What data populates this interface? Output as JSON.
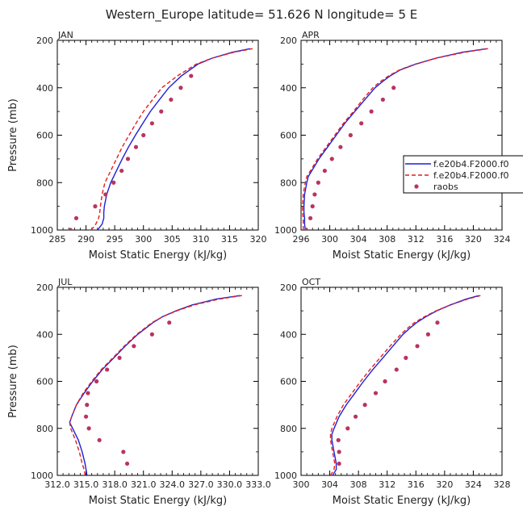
{
  "figure": {
    "title": "Western_Europe   latitude= 51.626 N longitude= 5 E"
  },
  "legend": {
    "placement": "right of APR panel",
    "entries": [
      {
        "label": "f.e20b4.F2000.f0",
        "style": "solid",
        "color": "#1f1fd6"
      },
      {
        "label": "f.e20b4.F2000.f0",
        "style": "dashed",
        "color": "#e0201e"
      },
      {
        "label": "raobs",
        "style": "dots",
        "color": "#b8345e"
      }
    ]
  },
  "colors": {
    "series1": "#1f1fd6",
    "series2": "#e0201e",
    "raobs": "#b8345e"
  },
  "chart_data": [
    {
      "type": "line",
      "panel": "JAN",
      "xlabel": "Moist Static Energy (kJ/kg)",
      "ylabel": "Pressure (mb)",
      "xlim": [
        285,
        320
      ],
      "ylim": [
        200,
        1000
      ],
      "y_inverted": true,
      "x_ticks": [
        285,
        290,
        295,
        300,
        305,
        310,
        315,
        320
      ],
      "x_tick_labels": [
        "285",
        "290",
        "295",
        "300",
        "305",
        "310",
        "315",
        "320"
      ],
      "y_ticks": [
        200,
        400,
        600,
        800,
        1000
      ],
      "y_tick_labels": [
        "200",
        "400",
        "600",
        "800",
        "1000"
      ],
      "series": [
        {
          "pressure": [
            1000,
            975,
            950,
            925,
            900,
            850,
            800,
            750,
            700,
            650,
            600,
            550,
            500,
            450,
            400,
            350,
            300,
            275,
            250,
            235
          ],
          "values": [
            292.0,
            292.8,
            293.1,
            293.1,
            293.2,
            293.6,
            294.3,
            295.3,
            296.3,
            297.4,
            298.6,
            299.9,
            301.2,
            302.8,
            304.4,
            306.6,
            309.5,
            312.0,
            315.5,
            318.6
          ]
        },
        {
          "pressure": [
            1000,
            975,
            950,
            925,
            900,
            850,
            800,
            750,
            700,
            650,
            600,
            550,
            500,
            450,
            400,
            350,
            300,
            275,
            250,
            235
          ],
          "values": [
            290.9,
            291.7,
            292.2,
            292.4,
            292.5,
            292.8,
            293.3,
            294.3,
            295.3,
            296.3,
            297.5,
            298.7,
            300.0,
            301.6,
            303.2,
            305.9,
            309.2,
            312.0,
            315.8,
            319.0
          ]
        },
        {
          "pressure": [
            1000,
            950,
            900,
            850,
            800,
            750,
            700,
            650,
            600,
            550,
            500,
            450,
            400,
            350
          ],
          "values": [
            287.3,
            288.3,
            291.6,
            293.4,
            294.8,
            296.2,
            297.3,
            298.7,
            300.0,
            301.5,
            303.1,
            304.8,
            306.5,
            308.3
          ]
        }
      ]
    },
    {
      "type": "line",
      "panel": "APR",
      "xlabel": "Moist Static Energy (kJ/kg)",
      "ylabel": "",
      "xlim": [
        296,
        324
      ],
      "ylim": [
        200,
        1000
      ],
      "y_inverted": true,
      "x_ticks": [
        296,
        300,
        304,
        308,
        312,
        316,
        320,
        324
      ],
      "x_tick_labels": [
        "296",
        "300",
        "304",
        "308",
        "312",
        "316",
        "320",
        "324"
      ],
      "y_ticks": [
        200,
        400,
        600,
        800,
        1000
      ],
      "y_tick_labels": [
        "200",
        "400",
        "600",
        "800",
        "1000"
      ],
      "series": [
        {
          "pressure": [
            1000,
            975,
            950,
            925,
            900,
            850,
            800,
            775,
            750,
            700,
            650,
            600,
            550,
            500,
            450,
            400,
            375,
            350,
            325,
            300,
            275,
            250,
            235
          ],
          "values": [
            296.6,
            296.5,
            296.5,
            296.4,
            296.4,
            296.5,
            296.8,
            297.0,
            297.5,
            298.5,
            299.7,
            300.9,
            302.1,
            303.5,
            304.9,
            306.3,
            307.3,
            308.4,
            309.8,
            312.0,
            314.8,
            318.5,
            321.9
          ]
        },
        {
          "pressure": [
            1000,
            975,
            950,
            925,
            900,
            850,
            800,
            775,
            750,
            700,
            650,
            600,
            550,
            500,
            450,
            400,
            375,
            350,
            325,
            300,
            275,
            250,
            235
          ],
          "values": [
            296.3,
            296.3,
            296.3,
            296.2,
            296.2,
            296.3,
            296.6,
            296.8,
            297.3,
            298.3,
            299.5,
            300.7,
            301.9,
            303.3,
            304.6,
            306.0,
            307.0,
            308.2,
            309.7,
            311.9,
            314.9,
            318.8,
            322.1
          ]
        },
        {
          "pressure": [
            1000,
            950,
            900,
            850,
            800,
            750,
            700,
            650,
            600,
            550,
            500,
            450,
            400
          ],
          "values": [
            296.7,
            297.3,
            297.6,
            297.9,
            298.4,
            299.3,
            300.3,
            301.5,
            302.9,
            304.4,
            305.8,
            307.4,
            308.9
          ]
        }
      ]
    },
    {
      "type": "line",
      "panel": "JUL",
      "xlabel": "Moist Static Energy (kJ/kg)",
      "ylabel": "Pressure (mb)",
      "xlim": [
        312,
        333
      ],
      "ylim": [
        200,
        1000
      ],
      "y_inverted": true,
      "x_ticks": [
        312,
        315,
        318,
        321,
        324,
        327,
        330,
        333
      ],
      "x_tick_labels": [
        "312.0",
        "315.0",
        "318.0",
        "321.0",
        "324.0",
        "327.0",
        "330.0",
        "333.0"
      ],
      "y_ticks": [
        200,
        400,
        600,
        800,
        1000
      ],
      "y_tick_labels": [
        "200",
        "400",
        "600",
        "800",
        "1000"
      ],
      "series": [
        {
          "pressure": [
            1000,
            975,
            950,
            900,
            850,
            800,
            775,
            750,
            700,
            650,
            600,
            550,
            500,
            450,
            400,
            350,
            325,
            300,
            275,
            250,
            235
          ],
          "values": [
            315.1,
            315.0,
            314.9,
            314.6,
            314.2,
            313.6,
            313.3,
            313.5,
            314.0,
            314.8,
            315.7,
            316.7,
            317.9,
            319.1,
            320.4,
            322.0,
            323.0,
            324.4,
            326.1,
            328.6,
            331.1
          ]
        },
        {
          "pressure": [
            1000,
            975,
            950,
            900,
            850,
            800,
            775,
            750,
            700,
            650,
            600,
            550,
            500,
            450,
            400,
            350,
            325,
            300,
            275,
            250,
            235
          ],
          "values": [
            314.9,
            314.8,
            314.6,
            314.3,
            313.9,
            313.4,
            313.3,
            313.5,
            314.0,
            314.7,
            315.6,
            316.6,
            317.8,
            319.0,
            320.3,
            321.9,
            323.0,
            324.5,
            326.3,
            328.9,
            331.3
          ]
        },
        {
          "pressure": [
            950,
            900,
            850,
            800,
            750,
            700,
            650,
            600,
            550,
            500,
            450,
            400,
            350
          ],
          "values": [
            319.3,
            318.9,
            316.4,
            315.3,
            315.0,
            315.1,
            315.2,
            316.1,
            317.2,
            318.5,
            320.0,
            321.9,
            323.7
          ]
        }
      ]
    },
    {
      "type": "line",
      "panel": "OCT",
      "xlabel": "Moist Static Energy (kJ/kg)",
      "ylabel": "",
      "xlim": [
        300,
        328
      ],
      "ylim": [
        200,
        1000
      ],
      "y_inverted": true,
      "x_ticks": [
        300,
        304,
        308,
        312,
        316,
        320,
        324,
        328
      ],
      "x_tick_labels": [
        "300",
        "304",
        "308",
        "312",
        "316",
        "320",
        "324",
        "328"
      ],
      "y_ticks": [
        200,
        400,
        600,
        800,
        1000
      ],
      "y_tick_labels": [
        "200",
        "400",
        "600",
        "800",
        "1000"
      ],
      "series": [
        {
          "pressure": [
            1000,
            975,
            950,
            900,
            850,
            825,
            800,
            750,
            700,
            650,
            600,
            550,
            500,
            450,
            400,
            375,
            350,
            325,
            300,
            275,
            250,
            235
          ],
          "values": [
            304.4,
            304.9,
            304.9,
            304.6,
            304.3,
            304.3,
            304.6,
            305.3,
            306.3,
            307.5,
            308.7,
            310.0,
            311.4,
            312.8,
            314.2,
            315.1,
            316.1,
            317.4,
            318.9,
            320.8,
            323.0,
            324.8
          ]
        },
        {
          "pressure": [
            1000,
            975,
            950,
            900,
            850,
            825,
            800,
            750,
            700,
            650,
            600,
            550,
            500,
            450,
            400,
            375,
            350,
            325,
            300,
            275,
            250,
            235
          ],
          "values": [
            304.1,
            304.6,
            304.7,
            304.4,
            304.1,
            304.1,
            304.3,
            305.0,
            305.9,
            307.1,
            308.3,
            309.6,
            311.0,
            312.4,
            313.9,
            314.8,
            315.8,
            317.2,
            318.8,
            320.8,
            323.2,
            325.0
          ]
        },
        {
          "pressure": [
            950,
            900,
            850,
            800,
            750,
            700,
            650,
            600,
            550,
            500,
            450,
            400,
            350
          ],
          "values": [
            305.3,
            305.3,
            305.2,
            306.5,
            307.6,
            308.9,
            310.4,
            311.7,
            313.3,
            314.6,
            316.2,
            317.7,
            319.0
          ]
        }
      ]
    }
  ]
}
